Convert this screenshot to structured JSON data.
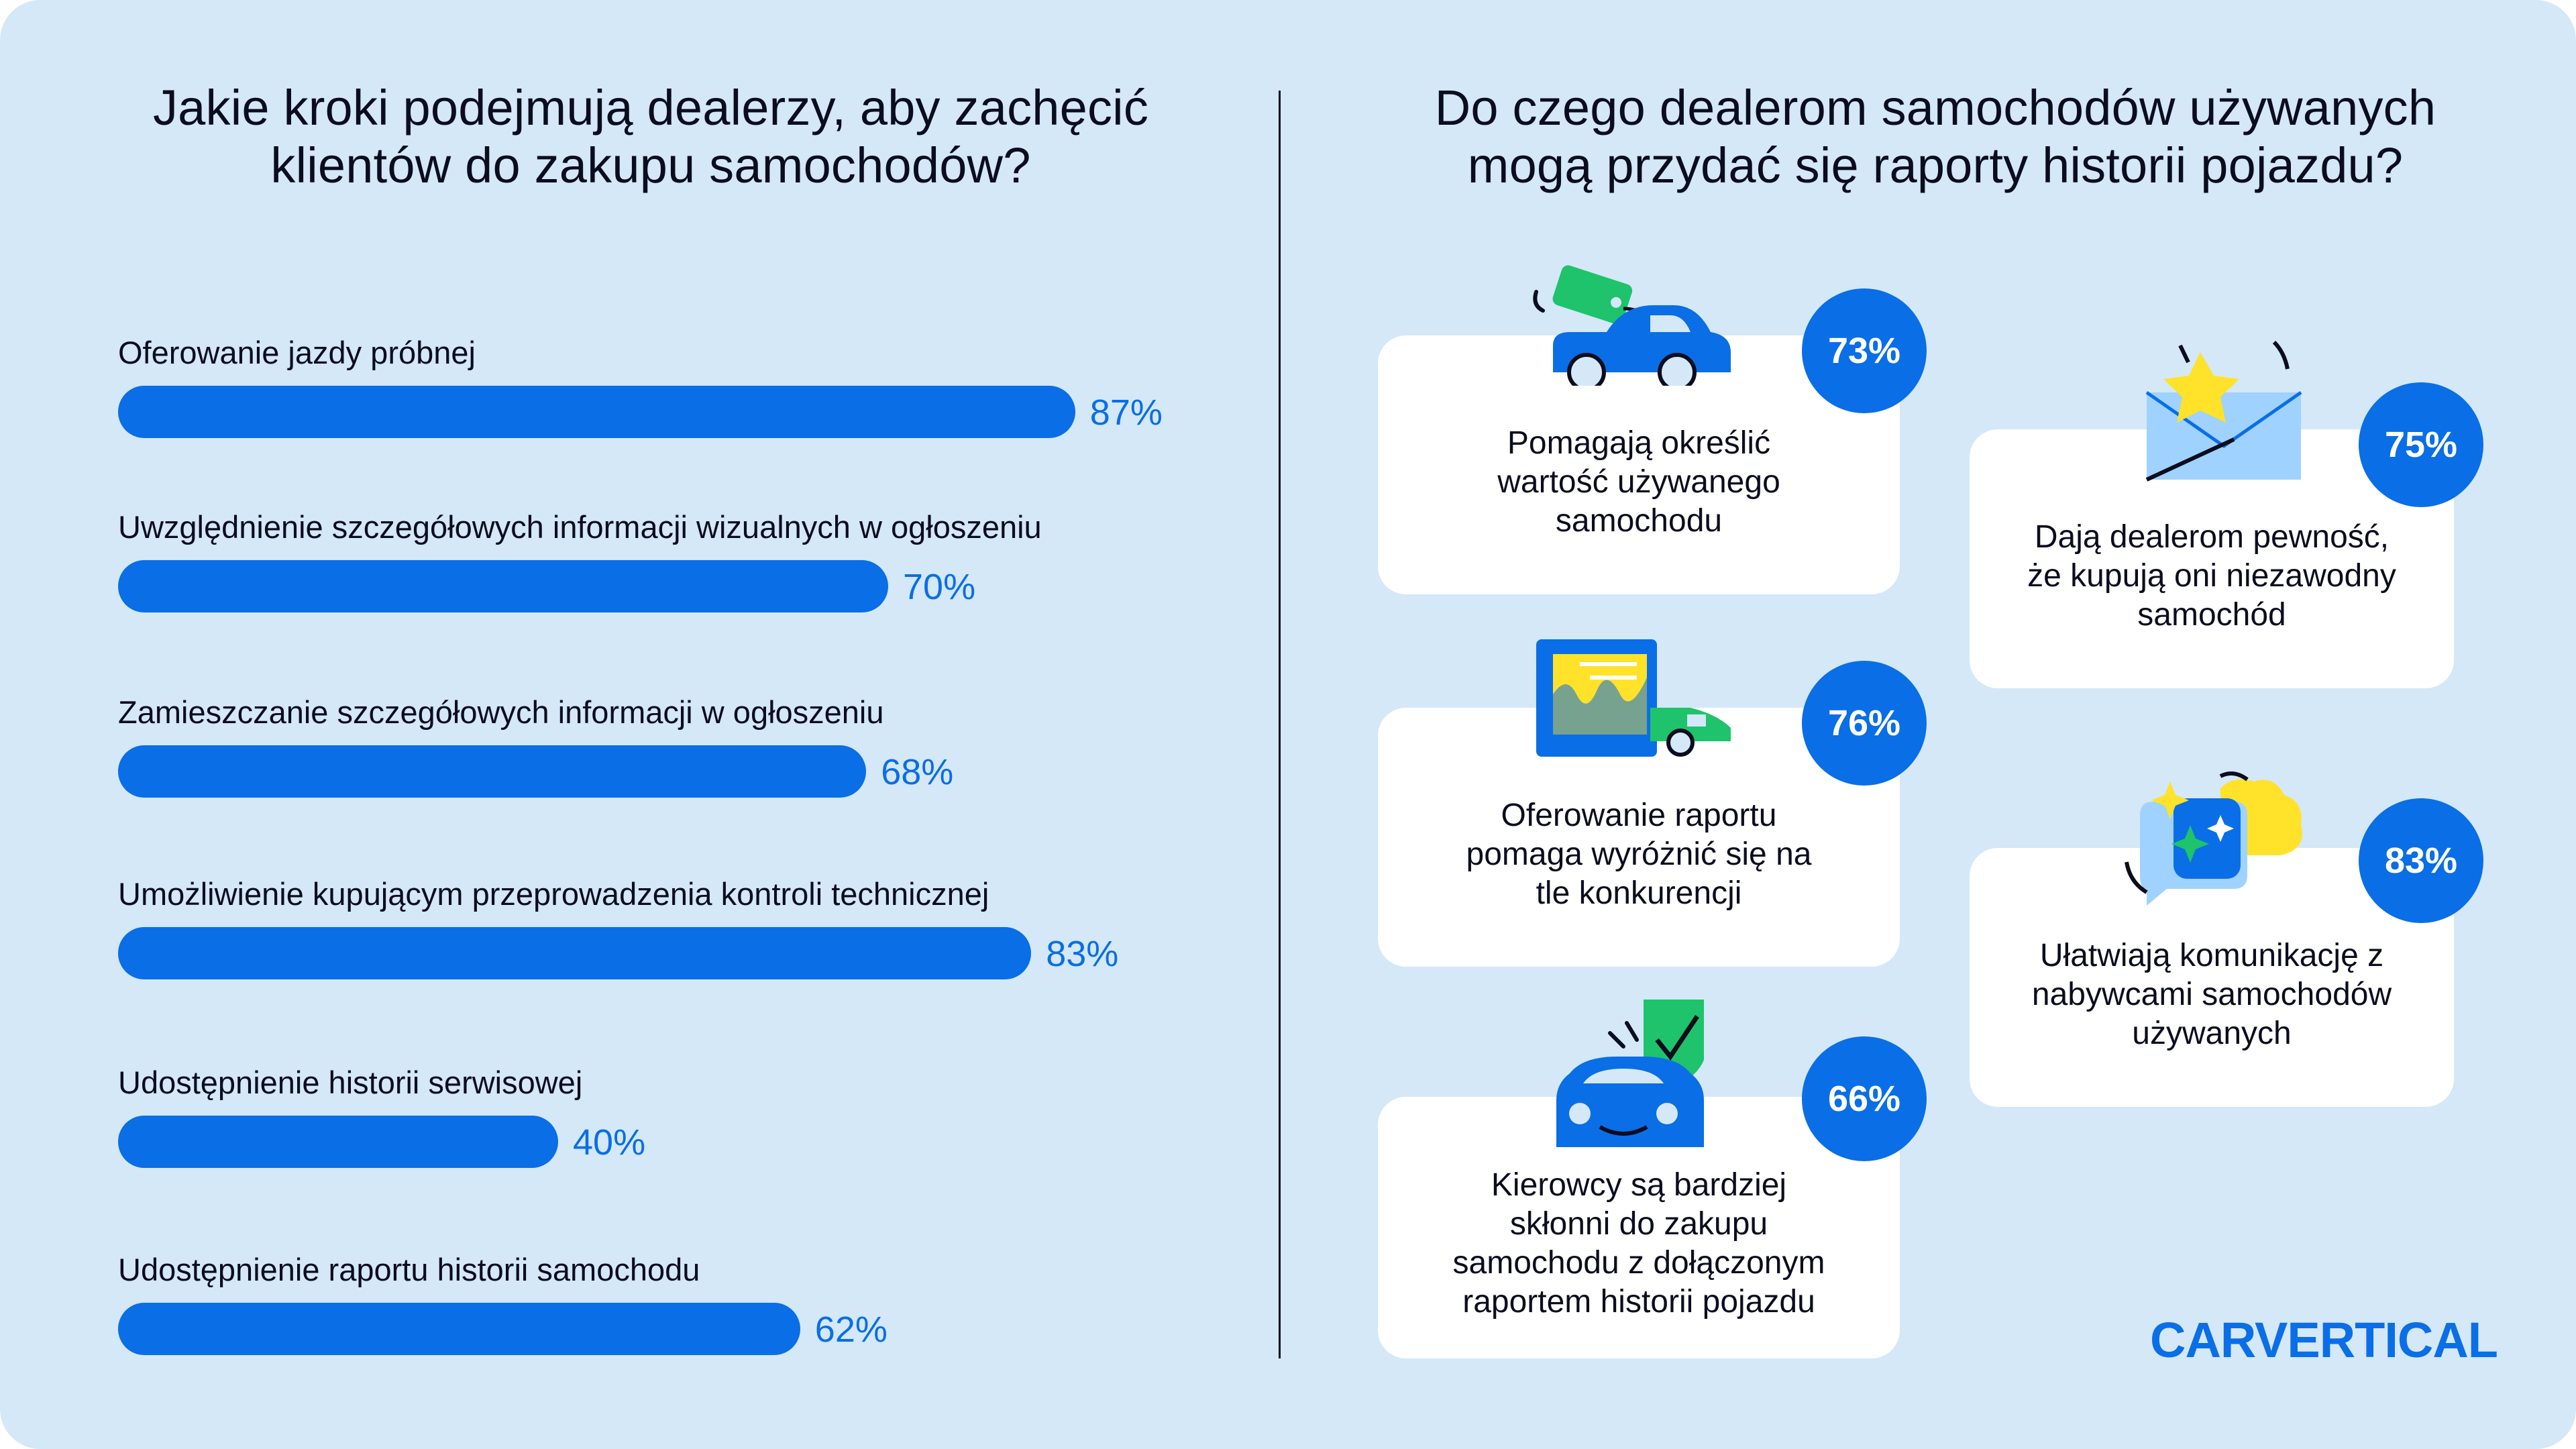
{
  "left": {
    "title_line1": "Jakie kroki podejmują dealerzy, aby zachęcić",
    "title_line2": "klientów do zakupu samochodów?"
  },
  "right": {
    "title_line1": "Do czego dealerom samochodów używanych",
    "title_line2": "mogą przydać się raporty historii pojazdu?"
  },
  "chart_data": [
    {
      "type": "bar",
      "orientation": "horizontal",
      "title": "Jakie kroki podejmują dealerzy, aby zachęcić klientów do zakupu samochodów?",
      "categories": [
        "Oferowanie jazdy próbnej",
        "Uwzględnienie szczegółowych informacji wizualnych w ogłoszeniu",
        "Zamieszczanie szczegółowych informacji w ogłoszeniu",
        "Umożliwienie kupującym przeprowadzenia kontroli technicznej",
        "Udostępnienie historii serwisowej",
        "Udostępnienie raportu historii samochodu"
      ],
      "values": [
        87,
        70,
        68,
        83,
        40,
        62
      ],
      "value_labels": [
        "87%",
        "70%",
        "68%",
        "83%",
        "40%",
        "62%"
      ],
      "xlim": [
        0,
        100
      ],
      "grid": false,
      "color": "#0a6ee6"
    },
    {
      "type": "table",
      "title": "Do czego dealerom samochodów używanych mogą przydać się raporty historii pojazdu?",
      "items": [
        {
          "text": "Pomagają określić wartość używanego samochodu",
          "value": 73,
          "label": "73%",
          "icon": "car-price-tag-icon"
        },
        {
          "text": "Oferowanie raportu pomaga wyróżnić się na tle konkurencji",
          "value": 76,
          "label": "76%",
          "icon": "report-car-icon"
        },
        {
          "text": "Kierowcy są bardziej skłonni do zakupu samochodu z dołączonym raportem historii pojazdu",
          "value": 66,
          "label": "66%",
          "icon": "car-shield-icon"
        },
        {
          "text": "Dają dealerom pewność, że kupują oni niezawodny samochód",
          "value": 75,
          "label": "75%",
          "icon": "envelope-star-icon"
        },
        {
          "text": "Ułatwiają komunikację z nabywcami samochodów używanych",
          "value": 83,
          "label": "83%",
          "icon": "chat-bubbles-icon"
        }
      ]
    }
  ],
  "cards": [
    {
      "lines": [
        "Pomagają określić",
        "wartość używanego",
        "samochodu"
      ],
      "badge": "73%"
    },
    {
      "lines": [
        "Oferowanie raportu",
        "pomaga wyróżnić się na",
        "tle konkurencji"
      ],
      "badge": "76%"
    },
    {
      "lines": [
        "Kierowcy są bardziej",
        "skłonni do zakupu",
        "samochodu z dołączonym",
        "raportem historii pojazdu"
      ],
      "badge": "66%"
    },
    {
      "lines": [
        "Dają dealerom pewność,",
        "że kupują oni niezawodny",
        "samochód"
      ],
      "badge": "75%"
    },
    {
      "lines": [
        "Ułatwiają komunikację z",
        "nabywcami samochodów",
        "używanych"
      ],
      "badge": "83%"
    }
  ],
  "brand": {
    "logo_text": "CARVERTICAL",
    "accent": "#0a6ee6",
    "background": "#d4e8f7",
    "green": "#1ec36b",
    "yellow": "#ffe229"
  }
}
